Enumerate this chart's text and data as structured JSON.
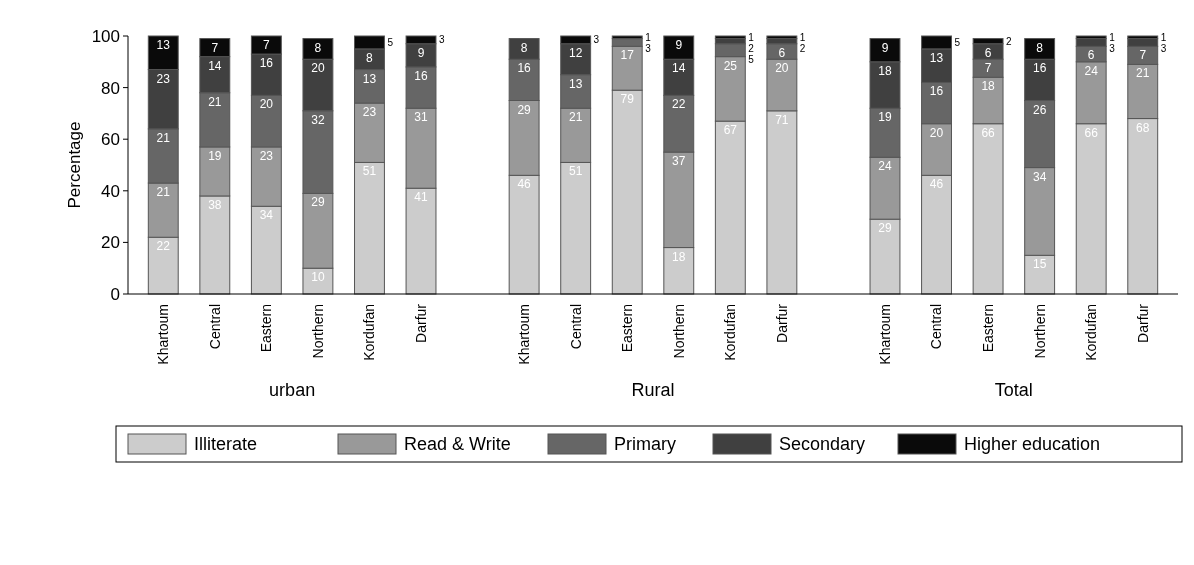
{
  "chart_data": {
    "type": "bar",
    "stacked": true,
    "ylabel": "Percentage",
    "ylim": [
      0,
      100
    ],
    "yticks": [
      0,
      20,
      40,
      60,
      80,
      100
    ],
    "grid": false,
    "legend": "bottom",
    "data_labels": true,
    "annotations": [
      "urban",
      "Rural",
      "Total"
    ],
    "categories": [
      "Khartoum",
      "Central",
      "Eastern",
      "Northern",
      "Kordufan",
      "Darfur",
      null,
      "Khartoum",
      "Central",
      "Eastern",
      "Northern",
      "Kordufan",
      "Darfur",
      null,
      "Khartoum",
      "Central",
      "Eastern",
      "Northern",
      "Kordufan",
      "Darfur"
    ],
    "series": [
      {
        "name": "Illiterate",
        "color": "#cccccc",
        "values": [
          22,
          38,
          34,
          10,
          51,
          41,
          null,
          46,
          51,
          79,
          18,
          67,
          71,
          null,
          29,
          46,
          66,
          15,
          66,
          68
        ]
      },
      {
        "name": "Read & Write",
        "color": "#999999",
        "values": [
          21,
          19,
          23,
          29,
          23,
          31,
          null,
          29,
          21,
          17,
          37,
          25,
          20,
          null,
          24,
          20,
          18,
          34,
          24,
          21
        ]
      },
      {
        "name": "Primary",
        "color": "#666666",
        "values": [
          21,
          21,
          20,
          32,
          13,
          16,
          null,
          16,
          13,
          3,
          22,
          5,
          6,
          null,
          19,
          16,
          7,
          26,
          6,
          7
        ]
      },
      {
        "name": "Secondary",
        "color": "#404040",
        "values": [
          23,
          14,
          16,
          20,
          8,
          9,
          null,
          8,
          12,
          null,
          14,
          2,
          2,
          null,
          18,
          13,
          6,
          16,
          3,
          3
        ]
      },
      {
        "name": "Higher education",
        "color": "#0a0a0a",
        "values": [
          13,
          7,
          7,
          8,
          5,
          3,
          null,
          null,
          3,
          1,
          9,
          1,
          1,
          null,
          9,
          5,
          2,
          8,
          1,
          1
        ]
      }
    ]
  }
}
